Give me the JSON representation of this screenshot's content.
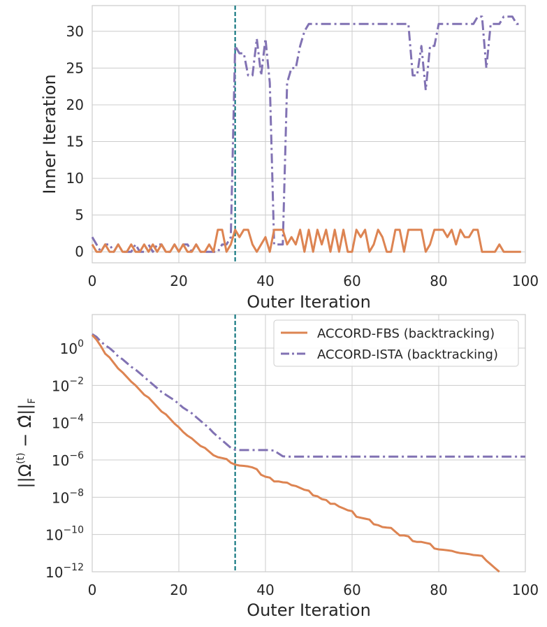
{
  "colors": {
    "fbs": "#dd8452",
    "ista": "#8172b3",
    "vline": "#006d77",
    "grid": "#cccccc",
    "frame": "#cccccc"
  },
  "chart_data": [
    {
      "type": "line",
      "xlabel": "Outer Iteration",
      "ylabel": "Inner Iteration",
      "xlim": [
        0,
        100
      ],
      "ylim": [
        -1.5,
        33.5
      ],
      "xticks": [
        0,
        20,
        40,
        60,
        80,
        100
      ],
      "yticks": [
        0,
        5,
        10,
        15,
        20,
        25,
        30
      ],
      "grid": true,
      "vline_x": 33,
      "series": [
        {
          "name": "ACCORD-FBS (backtracking)",
          "style": "solid",
          "x": [
            0,
            1,
            2,
            3,
            4,
            5,
            6,
            7,
            8,
            9,
            10,
            11,
            12,
            13,
            14,
            15,
            16,
            17,
            18,
            19,
            20,
            21,
            22,
            23,
            24,
            25,
            26,
            27,
            28,
            29,
            30,
            31,
            32,
            33,
            34,
            35,
            36,
            37,
            38,
            39,
            40,
            41,
            42,
            43,
            44,
            45,
            46,
            47,
            48,
            49,
            50,
            51,
            52,
            53,
            54,
            55,
            56,
            57,
            58,
            59,
            60,
            61,
            62,
            63,
            64,
            65,
            66,
            67,
            68,
            69,
            70,
            71,
            72,
            73,
            74,
            75,
            76,
            77,
            78,
            79,
            80,
            81,
            82,
            83,
            84,
            85,
            86,
            87,
            88,
            89,
            90,
            91,
            92,
            93,
            94,
            95,
            96,
            97,
            98,
            99
          ],
          "y": [
            1,
            0,
            0,
            1,
            0,
            0,
            1,
            0,
            0,
            1,
            0,
            0,
            1,
            0,
            1,
            0,
            1,
            0,
            0,
            1,
            0,
            1,
            0,
            0,
            1,
            0,
            0,
            1,
            0,
            3,
            3,
            0,
            1,
            3,
            2,
            3,
            3,
            1,
            0,
            1,
            2,
            0,
            3,
            3,
            3,
            1,
            2,
            1,
            3,
            0,
            3,
            0,
            3,
            1,
            3,
            0,
            3,
            0,
            3,
            0,
            0,
            3,
            2,
            3,
            0,
            1,
            3,
            2,
            0,
            0,
            3,
            3,
            0,
            3,
            3,
            3,
            3,
            0,
            1,
            3,
            3,
            3,
            2,
            3,
            1,
            3,
            2,
            2,
            3,
            3,
            0,
            0,
            0,
            0,
            1,
            0,
            0,
            0,
            0,
            0
          ]
        },
        {
          "name": "ACCORD-ISTA (backtracking)",
          "style": "dashdot",
          "x": [
            0,
            1,
            2,
            3,
            4,
            5,
            6,
            7,
            8,
            9,
            10,
            11,
            12,
            13,
            14,
            15,
            16,
            17,
            18,
            19,
            20,
            21,
            22,
            23,
            24,
            25,
            26,
            27,
            28,
            29,
            30,
            31,
            32,
            33,
            34,
            35,
            36,
            37,
            38,
            39,
            40,
            41,
            42,
            43,
            44,
            45,
            46,
            47,
            48,
            49,
            50,
            51,
            52,
            53,
            54,
            55,
            56,
            57,
            58,
            59,
            60,
            61,
            62,
            63,
            64,
            65,
            66,
            67,
            68,
            69,
            70,
            71,
            72,
            73,
            74,
            75,
            76,
            77,
            78,
            79,
            80,
            81,
            82,
            83,
            84,
            85,
            86,
            87,
            88,
            89,
            90,
            91,
            92,
            93,
            94,
            95,
            96,
            97,
            98,
            99
          ],
          "y": [
            2,
            1,
            0,
            1,
            1,
            0,
            1,
            0,
            0,
            0,
            1,
            0,
            0,
            1,
            0,
            1,
            1,
            0,
            0,
            1,
            0,
            1,
            1,
            0,
            1,
            0,
            0,
            0,
            0,
            0,
            1,
            1,
            2,
            28,
            27,
            27,
            24,
            24,
            29,
            24,
            29,
            23,
            1,
            1,
            1,
            23,
            25,
            25,
            28,
            30,
            31,
            31,
            31,
            31,
            31,
            31,
            31,
            31,
            31,
            31,
            31,
            31,
            31,
            31,
            31,
            31,
            31,
            31,
            31,
            31,
            31,
            31,
            31,
            31,
            24,
            24,
            28,
            22,
            28,
            28,
            31,
            31,
            31,
            31,
            31,
            31,
            31,
            31,
            31,
            32,
            32,
            25,
            31,
            31,
            31,
            32,
            32,
            32,
            31,
            31
          ]
        }
      ]
    },
    {
      "type": "line",
      "xlabel": "Outer Iteration",
      "ylabel": "||Ω(t) − Ω̂||F",
      "yscale": "log",
      "xlim": [
        0,
        100
      ],
      "ylim_exp": [
        -12,
        1.8
      ],
      "xticks": [
        0,
        20,
        40,
        60,
        80,
        100
      ],
      "ytick_exponents": [
        0,
        -2,
        -4,
        -6,
        -8,
        -10,
        -12
      ],
      "grid": true,
      "vline_x": 33,
      "legend_position": "top-right",
      "series": [
        {
          "name": "ACCORD-FBS (backtracking)",
          "style": "solid",
          "x": [
            0,
            1,
            2,
            3,
            4,
            5,
            6,
            7,
            8,
            9,
            10,
            11,
            12,
            13,
            14,
            15,
            16,
            17,
            18,
            19,
            20,
            21,
            22,
            23,
            24,
            25,
            26,
            27,
            28,
            29,
            30,
            31,
            32,
            33,
            34,
            35,
            36,
            37,
            38,
            39,
            40,
            41,
            42,
            43,
            44,
            45,
            46,
            47,
            48,
            49,
            50,
            51,
            52,
            53,
            54,
            55,
            56,
            57,
            58,
            59,
            60,
            61,
            62,
            63,
            64,
            65,
            66,
            67,
            68,
            69,
            70,
            71,
            72,
            73,
            74,
            75,
            76,
            77,
            78,
            79,
            80,
            81,
            82,
            83,
            84,
            85,
            86,
            87,
            88,
            89,
            90,
            91,
            92,
            93,
            94
          ],
          "logy": [
            0.7,
            0.45,
            0.1,
            -0.3,
            -0.5,
            -0.8,
            -1.1,
            -1.3,
            -1.55,
            -1.8,
            -2.0,
            -2.25,
            -2.5,
            -2.65,
            -2.9,
            -3.15,
            -3.4,
            -3.55,
            -3.8,
            -4.05,
            -4.25,
            -4.5,
            -4.7,
            -4.85,
            -5.05,
            -5.25,
            -5.35,
            -5.55,
            -5.75,
            -5.85,
            -5.9,
            -5.95,
            -6.15,
            -6.25,
            -6.3,
            -6.32,
            -6.35,
            -6.4,
            -6.5,
            -6.8,
            -6.9,
            -6.95,
            -7.15,
            -7.15,
            -7.2,
            -7.22,
            -7.35,
            -7.4,
            -7.5,
            -7.6,
            -7.65,
            -7.9,
            -7.95,
            -8.1,
            -8.15,
            -8.35,
            -8.35,
            -8.5,
            -8.6,
            -8.7,
            -8.75,
            -9.05,
            -9.1,
            -9.15,
            -9.2,
            -9.45,
            -9.5,
            -9.6,
            -9.63,
            -9.65,
            -9.85,
            -10.05,
            -10.05,
            -10.1,
            -10.35,
            -10.4,
            -10.4,
            -10.45,
            -10.5,
            -10.75,
            -10.8,
            -10.82,
            -10.85,
            -10.88,
            -10.95,
            -11.0,
            -11.02,
            -11.05,
            -11.1,
            -11.12,
            -11.15,
            -11.4,
            -11.6,
            -11.8,
            -12.0
          ]
        },
        {
          "name": "ACCORD-ISTA (backtracking)",
          "style": "dashdot",
          "x": [
            0,
            1,
            2,
            3,
            4,
            5,
            6,
            7,
            8,
            9,
            10,
            11,
            12,
            13,
            14,
            15,
            16,
            17,
            18,
            19,
            20,
            21,
            22,
            23,
            24,
            25,
            26,
            27,
            28,
            29,
            30,
            31,
            32,
            33,
            34,
            35,
            36,
            37,
            38,
            39,
            40,
            41,
            42,
            43,
            44,
            45,
            100
          ],
          "logy": [
            0.75,
            0.6,
            0.35,
            0.15,
            0.0,
            -0.2,
            -0.45,
            -0.6,
            -0.8,
            -1.0,
            -1.15,
            -1.35,
            -1.55,
            -1.75,
            -1.95,
            -2.15,
            -2.35,
            -2.5,
            -2.65,
            -2.8,
            -3.0,
            -3.2,
            -3.35,
            -3.5,
            -3.7,
            -3.9,
            -4.1,
            -4.3,
            -4.55,
            -4.75,
            -4.95,
            -5.15,
            -5.35,
            -5.45,
            -5.47,
            -5.47,
            -5.47,
            -5.47,
            -5.47,
            -5.47,
            -5.47,
            -5.47,
            -5.5,
            -5.65,
            -5.8,
            -5.82,
            -5.82
          ]
        }
      ]
    }
  ]
}
